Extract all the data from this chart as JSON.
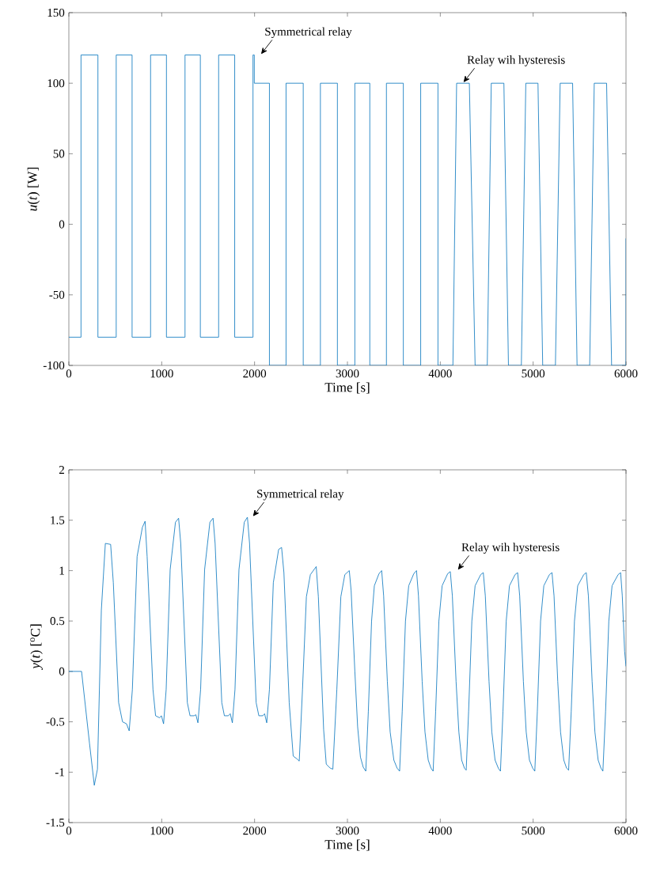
{
  "chart_data": [
    {
      "type": "line",
      "xlabel": "Time [s]",
      "ylabel": "*u*(*t*) [W]",
      "xlim": [
        0,
        6000
      ],
      "ylim": [
        -100,
        150
      ],
      "xticks": [
        0,
        1000,
        2000,
        3000,
        4000,
        5000,
        6000
      ],
      "yticks": [
        -100,
        -50,
        0,
        50,
        100,
        150
      ],
      "marker": "none",
      "line_style": "solid",
      "series": [
        {
          "color": "#0072bd",
          "x": [
            0,
            131,
            131,
            313,
            313,
            510,
            510,
            681,
            681,
            880,
            880,
            1051,
            1051,
            1251,
            1251,
            1416,
            1416,
            1613,
            1613,
            1786,
            1786,
            1983,
            1983,
            1997,
            1997,
            2160,
            2160,
            2339,
            2339,
            2524,
            2524,
            2709,
            2709,
            2892,
            2892,
            3080,
            3080,
            3241,
            3241,
            3420,
            3420,
            3602,
            3602,
            3789,
            3789,
            3975,
            3975,
            4136,
            4176,
            4313,
            4375,
            4506,
            4549,
            4685,
            4734,
            4873,
            4921,
            5052,
            5103,
            5240,
            5291,
            5425,
            5473,
            5609,
            5658,
            5791,
            5845,
            5985,
            6000,
            6000
          ],
          "values": [
            -80,
            -80,
            120,
            120,
            -80,
            -80,
            120,
            120,
            -80,
            -80,
            120,
            120,
            -80,
            -80,
            120,
            120,
            -80,
            -80,
            120,
            120,
            -80,
            -80,
            120,
            120,
            100,
            100,
            -100,
            -100,
            100,
            100,
            -100,
            -100,
            100,
            100,
            -100,
            -100,
            100,
            100,
            -100,
            -100,
            100,
            100,
            -100,
            -100,
            100,
            100,
            -100,
            -100,
            100,
            100,
            -100,
            -100,
            100,
            100,
            -100,
            -100,
            100,
            100,
            -100,
            -100,
            100,
            100,
            -100,
            -100,
            100,
            100,
            -100,
            -100,
            -100,
            -10
          ]
        }
      ],
      "annotations": [
        {
          "text": "Symmetrical relay",
          "x": 2010,
          "y": 120
        },
        {
          "text": "Relay wih hysteresis",
          "x": 4190,
          "y": 100
        }
      ]
    },
    {
      "type": "line",
      "xlabel": "Time [s]",
      "ylabel": "*y*(*t*) [$^{o}$C]",
      "xlim": [
        0,
        6000
      ],
      "ylim": [
        -1.5,
        2
      ],
      "xticks": [
        0,
        1000,
        2000,
        3000,
        4000,
        5000,
        6000
      ],
      "yticks": [
        -1.5,
        -1,
        -0.5,
        0,
        0.5,
        1,
        1.5,
        2
      ],
      "marker": "none",
      "line_style": "solid",
      "series": [
        {
          "color": "#0072bd",
          "x": [
            0,
            137,
            222,
            274,
            308,
            350,
            393,
            450,
            479,
            536,
            578,
            621,
            650,
            684,
            735,
            792,
            821,
            843,
            906,
            934,
            977,
            997,
            1020,
            1048,
            1091,
            1148,
            1182,
            1205,
            1276,
            1305,
            1348,
            1368,
            1390,
            1419,
            1462,
            1519,
            1553,
            1575,
            1647,
            1675,
            1718,
            1738,
            1761,
            1789,
            1832,
            1889,
            1923,
            1946,
            2017,
            2046,
            2088,
            2108,
            2131,
            2160,
            2202,
            2259,
            2291,
            2316,
            2373,
            2416,
            2459,
            2481,
            2516,
            2558,
            2601,
            2664,
            2687,
            2744,
            2772,
            2815,
            2843,
            2886,
            2929,
            2972,
            3020,
            3040,
            3080,
            3110,
            3140,
            3170,
            3198,
            3225,
            3260,
            3290,
            3340,
            3369,
            3390,
            3430,
            3460,
            3500,
            3535,
            3562,
            3590,
            3625,
            3660,
            3715,
            3744,
            3765,
            3805,
            3835,
            3870,
            3900,
            3923,
            3950,
            3985,
            4020,
            4080,
            4108,
            4130,
            4170,
            4200,
            4230,
            4260,
            4279,
            4305,
            4340,
            4375,
            4435,
            4463,
            4485,
            4525,
            4555,
            4590,
            4625,
            4648,
            4675,
            4710,
            4745,
            4805,
            4833,
            4855,
            4895,
            4925,
            4960,
            4995,
            5018,
            5045,
            5080,
            5115,
            5175,
            5203,
            5225,
            5265,
            5295,
            5330,
            5360,
            5382,
            5410,
            5445,
            5480,
            5545,
            5572,
            5595,
            5635,
            5665,
            5700,
            5730,
            5751,
            5780,
            5815,
            5850,
            5915,
            5942,
            5960,
            5985,
            6000
          ],
          "values": [
            0,
            0,
            -0.71,
            -1.13,
            -0.97,
            0.61,
            1.27,
            1.26,
            0.88,
            -0.31,
            -0.5,
            -0.52,
            -0.59,
            -0.18,
            1.14,
            1.43,
            1.49,
            1.14,
            -0.18,
            -0.44,
            -0.46,
            -0.44,
            -0.52,
            -0.18,
            1.01,
            1.48,
            1.52,
            1.27,
            -0.31,
            -0.44,
            -0.44,
            -0.43,
            -0.51,
            -0.18,
            1.01,
            1.48,
            1.52,
            1.27,
            -0.31,
            -0.44,
            -0.44,
            -0.42,
            -0.51,
            -0.18,
            1.01,
            1.48,
            1.53,
            1.27,
            -0.31,
            -0.44,
            -0.44,
            -0.42,
            -0.51,
            -0.18,
            0.88,
            1.21,
            1.23,
            0.98,
            -0.31,
            -0.84,
            -0.87,
            -0.89,
            -0.18,
            0.74,
            0.96,
            1.04,
            0.74,
            -0.58,
            -0.92,
            -0.96,
            -0.97,
            -0.18,
            0.74,
            0.96,
            1.0,
            0.8,
            0.0,
            -0.55,
            -0.85,
            -0.95,
            -0.99,
            -0.4,
            0.5,
            0.85,
            0.97,
            1.0,
            0.75,
            -0.1,
            -0.6,
            -0.88,
            -0.96,
            -0.99,
            -0.4,
            0.5,
            0.85,
            0.97,
            1.0,
            0.75,
            -0.1,
            -0.6,
            -0.88,
            -0.96,
            -0.99,
            -0.4,
            0.5,
            0.85,
            0.97,
            0.99,
            0.75,
            -0.1,
            -0.6,
            -0.88,
            -0.96,
            -0.98,
            -0.4,
            0.5,
            0.85,
            0.96,
            0.98,
            0.75,
            -0.1,
            -0.6,
            -0.88,
            -0.96,
            -0.99,
            -0.4,
            0.5,
            0.85,
            0.96,
            0.98,
            0.75,
            -0.1,
            -0.6,
            -0.88,
            -0.96,
            -0.99,
            -0.4,
            0.5,
            0.85,
            0.96,
            0.98,
            0.75,
            -0.1,
            -0.6,
            -0.88,
            -0.96,
            -0.98,
            -0.4,
            0.5,
            0.85,
            0.96,
            0.98,
            0.75,
            -0.1,
            -0.6,
            -0.88,
            -0.96,
            -0.99,
            -0.4,
            0.5,
            0.85,
            0.96,
            0.98,
            0.75,
            0.2,
            0.05
          ]
        }
      ],
      "annotations": [
        {
          "text": "Symmetrical relay",
          "x": 1923,
          "y": 1.53
        },
        {
          "text": "Relay wih hysteresis",
          "x": 4130,
          "y": 1.0
        }
      ]
    }
  ]
}
